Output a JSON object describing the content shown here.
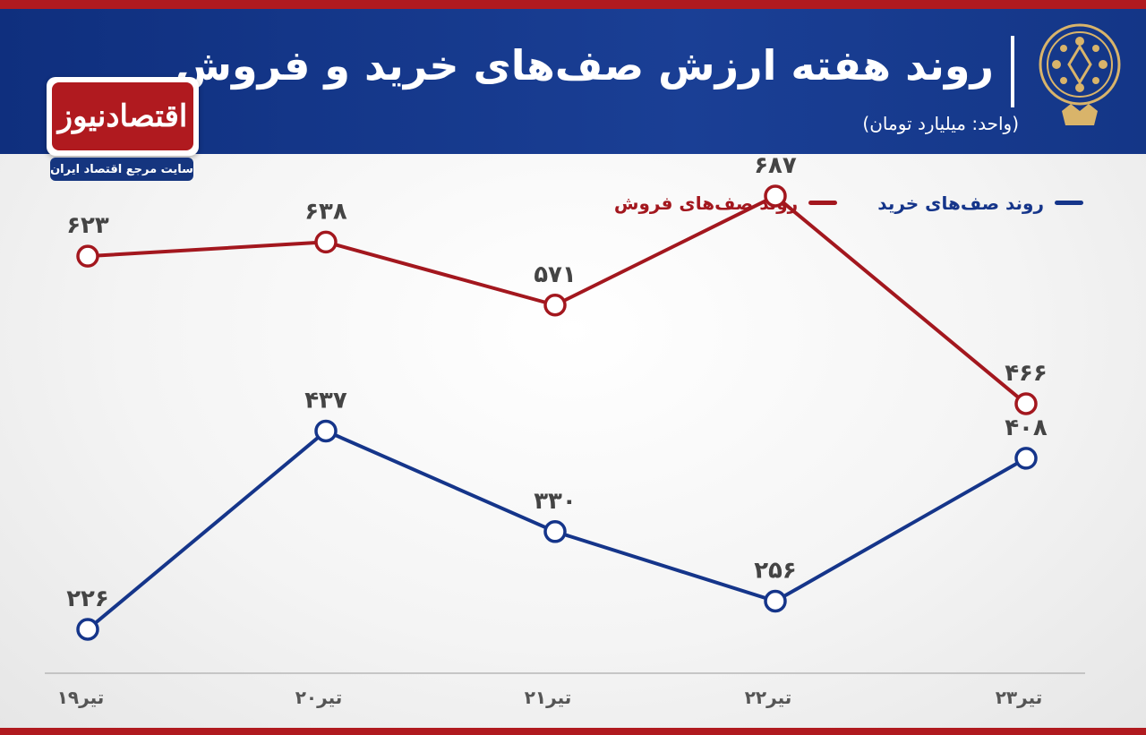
{
  "header": {
    "title": "روند هفته ارزش صف‌های خرید و فروش",
    "unit": "(واحد: میلیارد تومان)"
  },
  "logo": {
    "name": "اقتصادنیوز",
    "tagline": "سایت مرجع اقتصاد ایران"
  },
  "colors": {
    "buy": "#15358a",
    "sell": "#a3171e",
    "header": "#15357f",
    "accent": "#b01a1f"
  },
  "chart_data": {
    "type": "line",
    "categories": [
      "۱۹تیر",
      "۲۰تیر",
      "۲۱تیر",
      "۲۲تیر",
      "۲۳تیر"
    ],
    "series": [
      {
        "name": "روند صف‌های خرید",
        "values": [
          226,
          437,
          330,
          256,
          408
        ],
        "labels": [
          "۲۲۶",
          "۴۳۷",
          "۳۳۰",
          "۲۵۶",
          "۴۰۸"
        ]
      },
      {
        "name": "روند صف‌های فروش",
        "values": [
          623,
          638,
          571,
          687,
          466
        ],
        "labels": [
          "۶۲۳",
          "۶۳۸",
          "۵۷۱",
          "۶۸۷",
          "۴۶۶"
        ]
      }
    ],
    "legend_position": "top-right",
    "grid": false
  }
}
